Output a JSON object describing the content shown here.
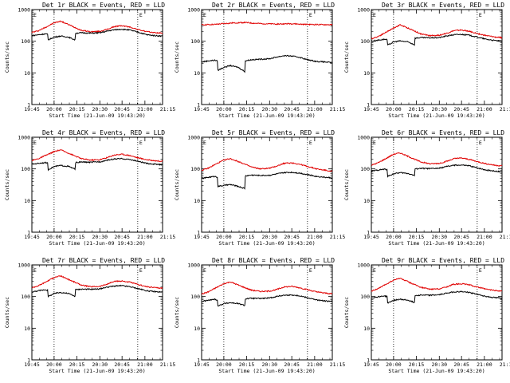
{
  "chart_data": [
    {
      "type": "line",
      "title": "Det 1r BLACK = Events, RED = LLD",
      "xlabel": "Start Time (21-Jun-09 19:43:20)",
      "ylabel": "Counts/sec",
      "yscale": "log",
      "ylim": [
        1,
        1000
      ],
      "xlim": [
        0,
        100
      ],
      "y_ticks": [
        "1",
        "10",
        "100",
        "1000"
      ],
      "x_ticks": [
        "19:45",
        "20:00",
        "20:15",
        "20:30",
        "20:45",
        "21:00",
        "21:15"
      ],
      "x_tick_pos": [
        0,
        17,
        34.5,
        52,
        69,
        86.5,
        104
      ],
      "vlines": [
        17,
        81
      ],
      "corner_labels": [
        "E",
        "E"
      ],
      "series": [
        {
          "color": "#e00000",
          "x": [
            0,
            5,
            10,
            17,
            22,
            30,
            38,
            45,
            52,
            58,
            63,
            69,
            75,
            81,
            88,
            95,
            100
          ],
          "y": [
            190,
            215,
            270,
            380,
            430,
            310,
            220,
            200,
            205,
            240,
            290,
            310,
            280,
            235,
            200,
            185,
            180
          ]
        },
        {
          "color": "#000000",
          "x": [
            0,
            5,
            10,
            12,
            12.5,
            17,
            22,
            28,
            33,
            33.5,
            38,
            45,
            52,
            58,
            63,
            69,
            75,
            81,
            88,
            95,
            100
          ],
          "y": [
            150,
            160,
            170,
            165,
            110,
            135,
            145,
            135,
            110,
            180,
            185,
            180,
            185,
            210,
            230,
            240,
            225,
            195,
            160,
            150,
            145
          ]
        }
      ]
    },
    {
      "type": "line",
      "title": "Det 2r BLACK = Events, RED = LLD",
      "xlabel": "Start Time (21-Jun-09 19:43:20)",
      "ylabel": "Counts/sec",
      "yscale": "log",
      "ylim": [
        1,
        1000
      ],
      "xlim": [
        0,
        100
      ],
      "y_ticks": [
        "1",
        "10",
        "100",
        "1000"
      ],
      "x_ticks": [
        "19:45",
        "20:00",
        "20:15",
        "20:30",
        "20:45",
        "21:00",
        "21:15"
      ],
      "x_tick_pos": [
        0,
        17,
        34.5,
        52,
        69,
        86.5,
        104
      ],
      "vlines": [
        17,
        81
      ],
      "corner_labels": [
        "E",
        "E"
      ],
      "series": [
        {
          "color": "#e00000",
          "x": [
            0,
            10,
            17,
            25,
            33,
            40,
            50,
            60,
            69,
            75,
            81,
            90,
            100
          ],
          "y": [
            330,
            340,
            360,
            380,
            390,
            370,
            355,
            350,
            360,
            345,
            340,
            335,
            330
          ]
        },
        {
          "color": "#000000",
          "x": [
            0,
            5,
            10,
            12,
            12.5,
            17,
            22,
            28,
            33,
            33.5,
            38,
            45,
            52,
            58,
            63,
            69,
            75,
            81,
            88,
            95,
            100
          ],
          "y": [
            22,
            24,
            25,
            24,
            12,
            15,
            17,
            15,
            11,
            24,
            26,
            27,
            28,
            32,
            35,
            34,
            31,
            26,
            23,
            22,
            21
          ]
        }
      ]
    },
    {
      "type": "line",
      "title": "Det 3r BLACK = Events, RED = LLD",
      "xlabel": "Start Time (21-Jun-09 19:43:20)",
      "ylabel": "Counts/sec",
      "yscale": "log",
      "ylim": [
        1,
        1000
      ],
      "xlim": [
        0,
        100
      ],
      "y_ticks": [
        "1",
        "10",
        "100",
        "1000"
      ],
      "x_ticks": [
        "19:45",
        "20:00",
        "20:15",
        "20:30",
        "20:45",
        "21:00",
        "21:15"
      ],
      "x_tick_pos": [
        0,
        17,
        34.5,
        52,
        69,
        86.5,
        104
      ],
      "vlines": [
        17,
        81
      ],
      "corner_labels": [
        "E",
        "E"
      ],
      "series": [
        {
          "color": "#e00000",
          "x": [
            0,
            5,
            10,
            17,
            22,
            30,
            38,
            45,
            52,
            58,
            63,
            69,
            75,
            81,
            88,
            95,
            100
          ],
          "y": [
            120,
            140,
            180,
            260,
            330,
            240,
            170,
            150,
            155,
            180,
            215,
            225,
            205,
            175,
            150,
            135,
            130
          ]
        },
        {
          "color": "#000000",
          "x": [
            0,
            5,
            10,
            12,
            12.5,
            17,
            22,
            28,
            33,
            33.5,
            38,
            45,
            52,
            58,
            63,
            69,
            75,
            81,
            88,
            95,
            100
          ],
          "y": [
            100,
            108,
            115,
            112,
            75,
            95,
            102,
            95,
            78,
            125,
            130,
            128,
            130,
            148,
            160,
            165,
            155,
            135,
            115,
            105,
            100
          ]
        }
      ]
    },
    {
      "type": "line",
      "title": "Det 4r BLACK = Events, RED = LLD",
      "xlabel": "Start Time (21-Jun-09 19:43:20)",
      "ylabel": "Counts/sec",
      "yscale": "log",
      "ylim": [
        1,
        1000
      ],
      "xlim": [
        0,
        100
      ],
      "y_ticks": [
        "1",
        "10",
        "100",
        "1000"
      ],
      "x_ticks": [
        "19:45",
        "20:00",
        "20:15",
        "20:30",
        "20:45",
        "21:00",
        "21:15"
      ],
      "x_tick_pos": [
        0,
        17,
        34.5,
        52,
        69,
        86.5,
        104
      ],
      "vlines": [
        17,
        81
      ],
      "corner_labels": [
        "E",
        "E"
      ],
      "series": [
        {
          "color": "#e00000",
          "x": [
            0,
            5,
            10,
            17,
            22,
            30,
            38,
            45,
            52,
            58,
            63,
            69,
            75,
            81,
            88,
            95,
            100
          ],
          "y": [
            185,
            210,
            260,
            350,
            400,
            290,
            210,
            190,
            195,
            230,
            275,
            290,
            265,
            225,
            195,
            180,
            175
          ]
        },
        {
          "color": "#000000",
          "x": [
            0,
            5,
            10,
            12,
            12.5,
            17,
            22,
            28,
            33,
            33.5,
            38,
            45,
            52,
            58,
            63,
            69,
            75,
            81,
            88,
            95,
            100
          ],
          "y": [
            140,
            150,
            158,
            152,
            95,
            118,
            128,
            120,
            98,
            158,
            165,
            162,
            168,
            190,
            205,
            210,
            198,
            175,
            148,
            140,
            135
          ]
        }
      ]
    },
    {
      "type": "line",
      "title": "Det 5r BLACK = Events, RED = LLD",
      "xlabel": "Start Time (21-Jun-09 19:43:20)",
      "ylabel": "Counts/sec",
      "yscale": "log",
      "ylim": [
        1,
        1000
      ],
      "xlim": [
        0,
        100
      ],
      "y_ticks": [
        "1",
        "10",
        "100",
        "1000"
      ],
      "x_ticks": [
        "19:45",
        "20:00",
        "20:15",
        "20:30",
        "20:45",
        "21:00",
        "21:15"
      ],
      "x_tick_pos": [
        0,
        17,
        34.5,
        52,
        69,
        86.5,
        104
      ],
      "vlines": [
        17,
        81
      ],
      "corner_labels": [
        "E",
        "E"
      ],
      "series": [
        {
          "color": "#e00000",
          "x": [
            0,
            5,
            10,
            17,
            22,
            30,
            38,
            45,
            52,
            58,
            63,
            69,
            75,
            81,
            88,
            95,
            100
          ],
          "y": [
            90,
            105,
            135,
            190,
            210,
            160,
            115,
            100,
            105,
            125,
            150,
            155,
            140,
            120,
            100,
            90,
            85
          ]
        },
        {
          "color": "#000000",
          "x": [
            0,
            5,
            10,
            12,
            12.5,
            17,
            22,
            28,
            33,
            33.5,
            38,
            45,
            52,
            58,
            63,
            69,
            75,
            81,
            88,
            95,
            100
          ],
          "y": [
            50,
            54,
            58,
            55,
            28,
            30,
            32,
            28,
            24,
            60,
            64,
            62,
            63,
            70,
            76,
            78,
            74,
            66,
            58,
            54,
            52
          ]
        }
      ]
    },
    {
      "type": "line",
      "title": "Det 6r BLACK = Events, RED = LLD",
      "xlabel": "Start Time (21-Jun-09 19:43:20)",
      "ylabel": "Counts/sec",
      "yscale": "log",
      "ylim": [
        1,
        1000
      ],
      "xlim": [
        0,
        100
      ],
      "y_ticks": [
        "1",
        "10",
        "100",
        "1000"
      ],
      "x_ticks": [
        "19:45",
        "20:00",
        "20:15",
        "20:30",
        "20:45",
        "21:00",
        "21:15"
      ],
      "x_tick_pos": [
        0,
        17,
        34.5,
        52,
        69,
        86.5,
        104
      ],
      "vlines": [
        17,
        81
      ],
      "corner_labels": [
        "E",
        "E"
      ],
      "series": [
        {
          "color": "#e00000",
          "x": [
            0,
            5,
            10,
            17,
            22,
            30,
            38,
            45,
            52,
            58,
            63,
            69,
            75,
            81,
            88,
            95,
            100
          ],
          "y": [
            130,
            155,
            200,
            290,
            320,
            230,
            165,
            145,
            150,
            175,
            210,
            220,
            200,
            170,
            145,
            130,
            125
          ]
        },
        {
          "color": "#000000",
          "x": [
            0,
            5,
            10,
            12,
            12.5,
            17,
            22,
            28,
            33,
            33.5,
            38,
            45,
            52,
            58,
            63,
            69,
            75,
            81,
            88,
            95,
            100
          ],
          "y": [
            85,
            92,
            98,
            95,
            58,
            70,
            76,
            72,
            62,
            100,
            104,
            102,
            105,
            120,
            130,
            132,
            125,
            108,
            92,
            85,
            80
          ]
        }
      ]
    },
    {
      "type": "line",
      "title": "Det 7r BLACK = Events, RED = LLD",
      "xlabel": "Start Time (21-Jun-09 19:43:20)",
      "ylabel": "Counts/sec",
      "yscale": "log",
      "ylim": [
        1,
        1000
      ],
      "xlim": [
        0,
        100
      ],
      "y_ticks": [
        "1",
        "10",
        "100",
        "1000"
      ],
      "x_ticks": [
        "19:45",
        "20:00",
        "20:15",
        "20:30",
        "20:45",
        "21:00",
        "21:15"
      ],
      "x_tick_pos": [
        0,
        17,
        34.5,
        52,
        69,
        86.5,
        104
      ],
      "vlines": [
        17,
        81
      ],
      "corner_labels": [
        "E",
        "E"
      ],
      "series": [
        {
          "color": "#e00000",
          "x": [
            0,
            5,
            10,
            17,
            22,
            30,
            38,
            45,
            52,
            58,
            63,
            69,
            75,
            81,
            88,
            95,
            100
          ],
          "y": [
            190,
            220,
            280,
            400,
            450,
            320,
            230,
            205,
            210,
            250,
            300,
            310,
            285,
            240,
            205,
            190,
            185
          ]
        },
        {
          "color": "#000000",
          "x": [
            0,
            5,
            10,
            12,
            12.5,
            17,
            22,
            28,
            33,
            33.5,
            38,
            45,
            52,
            58,
            63,
            69,
            75,
            81,
            88,
            95,
            100
          ],
          "y": [
            140,
            152,
            165,
            158,
            100,
            125,
            135,
            125,
            102,
            165,
            172,
            170,
            175,
            200,
            215,
            220,
            205,
            180,
            152,
            142,
            138
          ]
        }
      ]
    },
    {
      "type": "line",
      "title": "Det 8r BLACK = Events, RED = LLD",
      "xlabel": "Start Time (21-Jun-09 19:43:20)",
      "ylabel": "Counts/sec",
      "yscale": "log",
      "ylim": [
        1,
        1000
      ],
      "xlim": [
        0,
        100
      ],
      "y_ticks": [
        "1",
        "10",
        "100",
        "1000"
      ],
      "x_ticks": [
        "19:45",
        "20:00",
        "20:15",
        "20:30",
        "20:45",
        "21:00",
        "21:15"
      ],
      "x_tick_pos": [
        0,
        17,
        34.5,
        52,
        69,
        86.5,
        104
      ],
      "vlines": [
        17,
        81
      ],
      "corner_labels": [
        "E",
        "E"
      ],
      "series": [
        {
          "color": "#e00000",
          "x": [
            0,
            5,
            10,
            17,
            22,
            30,
            38,
            45,
            52,
            58,
            63,
            69,
            75,
            81,
            88,
            95,
            100
          ],
          "y": [
            120,
            140,
            180,
            255,
            290,
            215,
            160,
            145,
            148,
            170,
            200,
            210,
            190,
            165,
            140,
            128,
            122
          ]
        },
        {
          "color": "#000000",
          "x": [
            0,
            5,
            10,
            12,
            12.5,
            17,
            22,
            28,
            33,
            33.5,
            38,
            45,
            52,
            58,
            63,
            69,
            75,
            81,
            88,
            95,
            100
          ],
          "y": [
            70,
            76,
            82,
            78,
            50,
            60,
            64,
            60,
            52,
            85,
            88,
            87,
            90,
            102,
            110,
            112,
            106,
            92,
            78,
            72,
            70
          ]
        }
      ]
    },
    {
      "type": "line",
      "title": "Det 9r BLACK = Events, RED = LLD",
      "xlabel": "Start Time (21-Jun-09 19:43:20)",
      "ylabel": "Counts/sec",
      "yscale": "log",
      "ylim": [
        1,
        1000
      ],
      "xlim": [
        0,
        100
      ],
      "y_ticks": [
        "1",
        "10",
        "100",
        "1000"
      ],
      "x_ticks": [
        "19:45",
        "20:00",
        "20:15",
        "20:30",
        "20:45",
        "21:00",
        "21:15"
      ],
      "x_tick_pos": [
        0,
        17,
        34.5,
        52,
        69,
        86.5,
        104
      ],
      "vlines": [
        17,
        81
      ],
      "corner_labels": [
        "E",
        "E"
      ],
      "series": [
        {
          "color": "#e00000",
          "x": [
            0,
            5,
            10,
            17,
            22,
            30,
            38,
            45,
            52,
            58,
            63,
            69,
            75,
            81,
            88,
            95,
            100
          ],
          "y": [
            150,
            175,
            230,
            330,
            380,
            270,
            195,
            170,
            175,
            205,
            245,
            255,
            235,
            200,
            170,
            155,
            150
          ]
        },
        {
          "color": "#000000",
          "x": [
            0,
            5,
            10,
            12,
            12.5,
            17,
            22,
            28,
            33,
            33.5,
            38,
            45,
            52,
            58,
            63,
            69,
            75,
            81,
            88,
            95,
            100
          ],
          "y": [
            90,
            98,
            105,
            100,
            62,
            76,
            82,
            77,
            65,
            108,
            112,
            110,
            114,
            130,
            140,
            143,
            135,
            118,
            100,
            92,
            88
          ]
        }
      ]
    }
  ]
}
